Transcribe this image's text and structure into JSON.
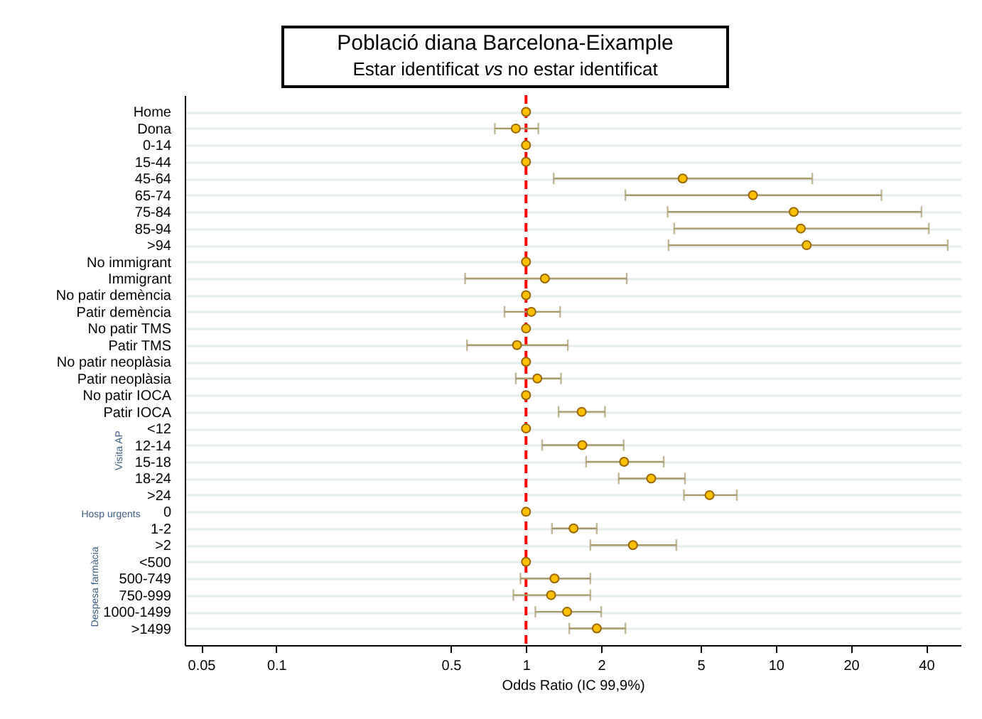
{
  "chart_data": {
    "type": "scatter",
    "title": "Població diana Barcelona-Eixample",
    "subtitle": "Estar identificat $^{}$vs no estar identificat",
    "xlabel": "Odds Ratio (IC 99,9%)",
    "categories": [
      "Home",
      "Dona",
      "0-14",
      "15-44",
      "45-64",
      "65-74",
      "75-84",
      "85-94",
      ">94",
      "No immigrant",
      "Immigrant",
      "No patir demència",
      "Patir demència",
      "No patir TMS",
      "Patir TMS",
      "No patir neoplàsia",
      "Patir neoplàsia",
      "No patir IOCA",
      "Patir IOCA",
      "<12",
      "12-14",
      "15-18",
      "18-24",
      ">24",
      "0",
      "1-2",
      ">2",
      "<500",
      "500-749",
      "750-999",
      "1000-1499",
      ">1499"
    ],
    "orientation": "horizontal",
    "series": [
      {
        "color": "#ffc000",
        "values": [
          1,
          0.91,
          1,
          1,
          4.24,
          8.1,
          11.8,
          12.6,
          13.3,
          1,
          1.19,
          1,
          1.05,
          1,
          0.92,
          1,
          1.11,
          1,
          1.67,
          1,
          1.68,
          2.47,
          3.17,
          5.43,
          1,
          1.55,
          2.68,
          1,
          1.3,
          1.26,
          1.46,
          1.92
        ],
        "errors": [
          null,
          [
            0.75,
            1.12
          ],
          null,
          null,
          [
            1.29,
            14.0
          ],
          [
            2.5,
            26.5
          ],
          [
            3.69,
            38.3
          ],
          [
            3.92,
            41
          ],
          [
            3.72,
            48.8
          ],
          null,
          [
            0.57,
            2.53
          ],
          null,
          [
            0.82,
            1.37
          ],
          null,
          [
            0.58,
            1.47
          ],
          null,
          [
            0.91,
            1.38
          ],
          null,
          [
            1.35,
            2.07
          ],
          null,
          [
            1.16,
            2.46
          ],
          [
            1.74,
            3.56
          ],
          [
            2.35,
            4.33
          ],
          [
            4.29,
            6.98
          ],
          null,
          [
            1.27,
            1.92
          ],
          [
            1.81,
            4.0
          ],
          null,
          [
            0.95,
            1.81
          ],
          [
            0.89,
            1.81
          ],
          [
            1.09,
            2.0
          ],
          [
            1.49,
            2.5
          ]
        ]
      }
    ],
    "xlim": [
      0.043,
      55
    ],
    "xticks": [
      0.05,
      0.1,
      0.5,
      1,
      2,
      5,
      10,
      20,
      40
    ],
    "log": "x",
    "grid": "y",
    "marker": "circle",
    "ref_lines": [
      {
        "axis": "x",
        "value": 1,
        "color": "#ff0000",
        "line_style": "dashed"
      }
    ],
    "annotations": [
      "Visita AP",
      "Hosp urgents",
      "Despesa farmàcia"
    ]
  }
}
